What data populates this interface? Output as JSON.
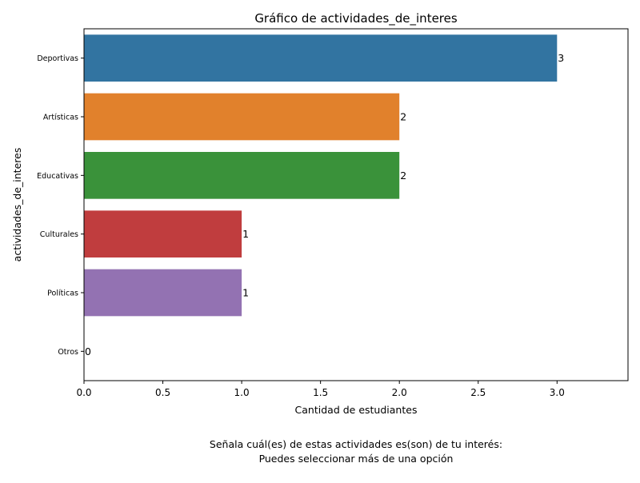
{
  "chart_data": {
    "type": "bar",
    "orientation": "horizontal",
    "title": "Gráfico de actividades_de_interes",
    "xlabel": "Cantidad de estudiantes",
    "ylabel": "actividades_de_interes",
    "categories": [
      "Deportivas",
      "Artísticas",
      "Educativas",
      "Culturales",
      "Políticas",
      "Otros"
    ],
    "values": [
      3,
      2,
      2,
      1,
      1,
      0
    ],
    "data_labels": [
      "3",
      "2",
      "2",
      "1",
      "1",
      "0"
    ],
    "colors": [
      "#3274a1",
      "#e1812c",
      "#3a923a",
      "#c03d3e",
      "#9372b2",
      "#845b53"
    ],
    "xlim": [
      0,
      3.45
    ],
    "xticks": [
      0,
      0.5,
      1,
      1.5,
      2,
      2.5,
      3
    ],
    "xtick_labels": [
      "0.0",
      "0.5",
      "1.0",
      "1.5",
      "2.0",
      "2.5",
      "3.0"
    ],
    "grid": false,
    "legend": "none"
  },
  "caption": {
    "line1": "Señala cuál(es) de estas actividades es(son) de tu interés:",
    "line2": "Puedes seleccionar más de una opción"
  }
}
